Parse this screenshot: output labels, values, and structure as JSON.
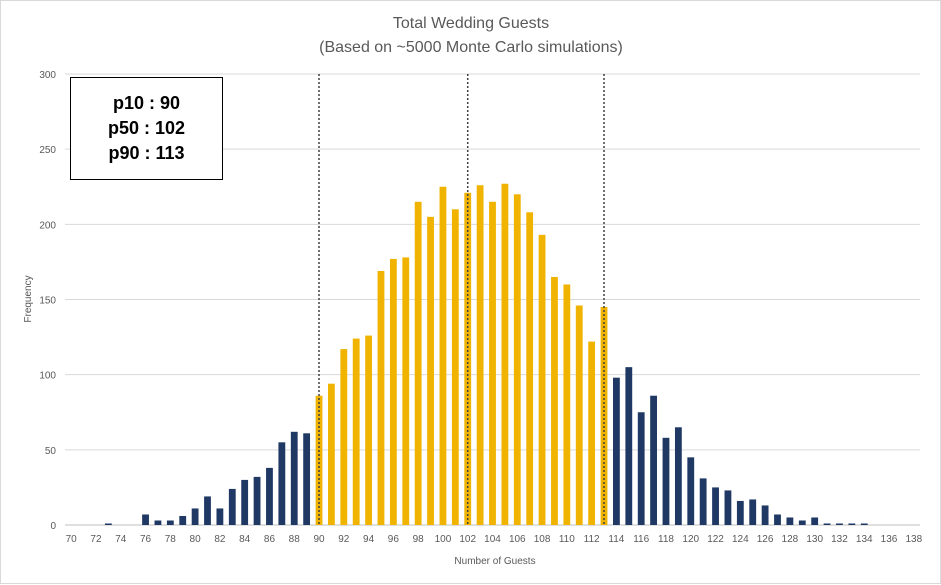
{
  "chart_data": {
    "type": "bar",
    "title": "Total Wedding Guests",
    "subtitle": "(Based on ~5000 Monte Carlo simulations)",
    "xlabel": "Number of Guests",
    "ylabel": "Frequency",
    "ylim": [
      0,
      300
    ],
    "y_ticks": [
      0,
      50,
      100,
      150,
      200,
      250,
      300
    ],
    "x_range": [
      70,
      139
    ],
    "x_tick_labels": [
      "70",
      "72",
      "74",
      "76",
      "78",
      "80",
      "82",
      "84",
      "86",
      "88",
      "90",
      "92",
      "94",
      "96",
      "98",
      "100",
      "102",
      "104",
      "106",
      "108",
      "110",
      "112",
      "114",
      "116",
      "118",
      "120",
      "122",
      "124",
      "126",
      "128",
      "130",
      "132",
      "134",
      "136",
      "138"
    ],
    "grid": "horizontal",
    "legend": "none",
    "colors": {
      "outside": "#1f3864",
      "inside": "#f0b400",
      "markers": "#404040"
    },
    "highlight_range": [
      90,
      113
    ],
    "percentile_markers": [
      {
        "label": "p10",
        "value": 90
      },
      {
        "label": "p50",
        "value": 102
      },
      {
        "label": "p90",
        "value": 113
      }
    ],
    "x": [
      72,
      73,
      75,
      76,
      77,
      78,
      79,
      80,
      81,
      82,
      83,
      84,
      85,
      86,
      87,
      88,
      89,
      90,
      91,
      92,
      93,
      94,
      95,
      96,
      97,
      98,
      99,
      100,
      101,
      102,
      103,
      104,
      105,
      106,
      107,
      108,
      109,
      110,
      111,
      112,
      113,
      114,
      115,
      116,
      117,
      118,
      119,
      120,
      121,
      122,
      123,
      124,
      125,
      126,
      127,
      128,
      129,
      130,
      131,
      132,
      133,
      134
    ],
    "values": [
      0,
      1,
      0,
      7,
      3,
      3,
      6,
      11,
      19,
      11,
      24,
      30,
      32,
      38,
      55,
      62,
      61,
      86,
      94,
      117,
      124,
      126,
      169,
      177,
      178,
      215,
      205,
      225,
      210,
      221,
      226,
      215,
      227,
      220,
      208,
      193,
      165,
      160,
      146,
      122,
      145,
      98,
      105,
      75,
      86,
      58,
      65,
      45,
      31,
      25,
      23,
      16,
      17,
      13,
      7,
      5,
      3,
      5,
      1,
      1,
      1,
      1
    ]
  },
  "stats_box": {
    "line1": "p10 : 90",
    "line2": "p50 : 102",
    "line3": "p90 : 113"
  }
}
